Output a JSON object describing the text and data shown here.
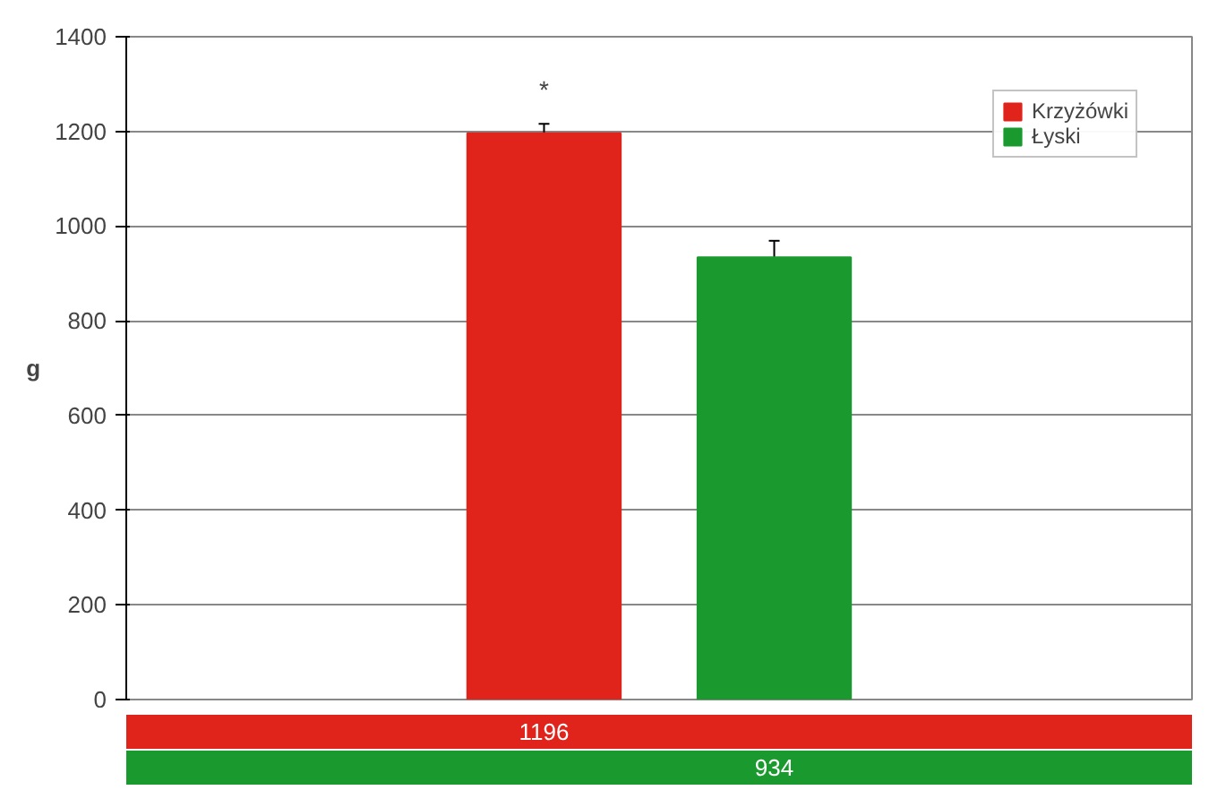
{
  "chart_data": {
    "type": "bar",
    "ylabel": "g",
    "categories": [
      null
    ],
    "series": [
      {
        "name": "Krzyżówki",
        "color": "#e0231b",
        "values": [
          1196
        ],
        "errors": [
          20
        ]
      },
      {
        "name": "Łyski",
        "color": "#1a9a2e",
        "values": [
          934
        ],
        "errors": [
          35
        ]
      }
    ],
    "ylim": [
      0,
      1400
    ],
    "yticks": [
      0,
      200,
      400,
      600,
      800,
      1000,
      1200,
      1400
    ],
    "grid": "y",
    "legend": "top right",
    "data_labels": true,
    "annotations": [
      "*"
    ]
  }
}
